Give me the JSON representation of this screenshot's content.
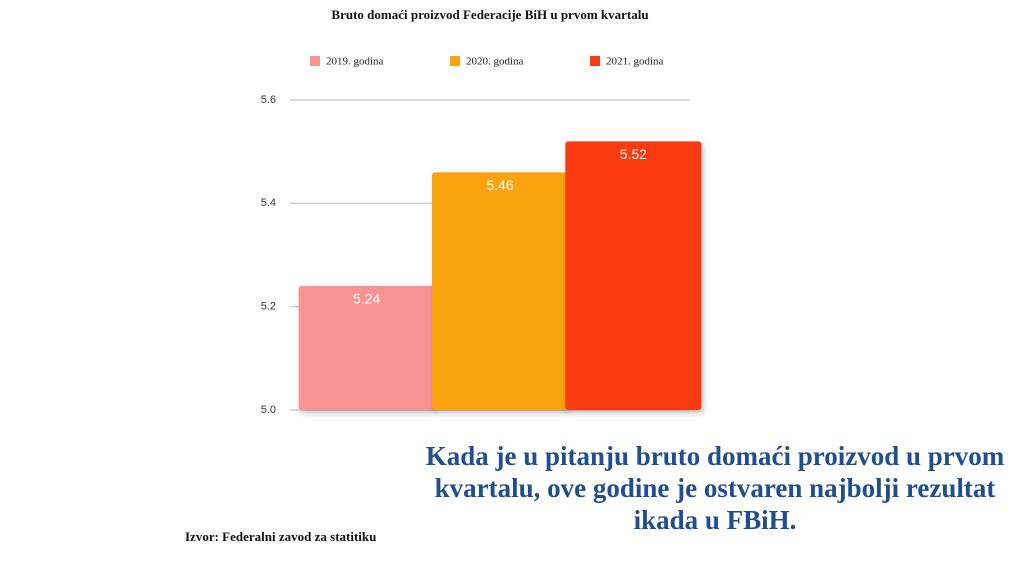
{
  "chart_data": {
    "type": "bar",
    "title": "Bruto domaći proizvod Federacije BiH u prvom kvartalu",
    "series": [
      {
        "name": "2019. godina",
        "color": "#f99393",
        "values": [
          5.24
        ]
      },
      {
        "name": "2020. godina",
        "color": "#fba30e",
        "values": [
          5.46
        ]
      },
      {
        "name": "2021. godina",
        "color": "#fb3a10",
        "values": [
          5.52
        ]
      }
    ],
    "ylim": [
      5,
      5.6
    ],
    "yticks": [
      {
        "value": 5,
        "label": "5.0"
      },
      5.2,
      5.4,
      5.6
    ],
    "grid": true,
    "legend": "top",
    "source": "Izvor: Federalni zavod za statitiku",
    "annotation": "Kada je u pitanju bruto domaći proizvod u prvom kvartalu, ove godine je ostvaren najbolji rezultat ikada u FBiH."
  }
}
